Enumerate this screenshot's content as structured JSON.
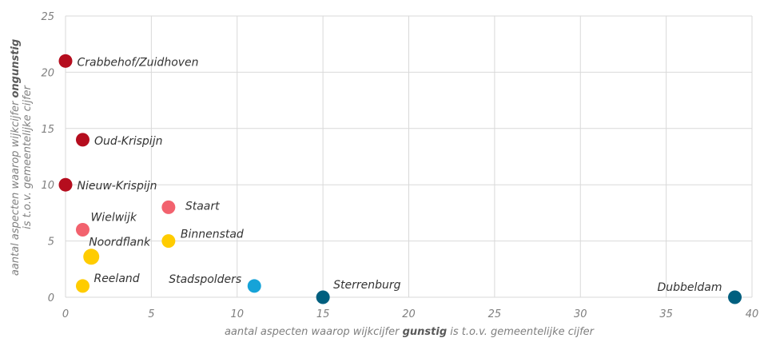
{
  "chart_data": {
    "type": "scatter",
    "xlim": [
      0,
      40
    ],
    "ylim": [
      0,
      25
    ],
    "x_ticks": [
      0,
      5,
      10,
      15,
      20,
      25,
      30,
      35,
      40
    ],
    "y_ticks": [
      0,
      5,
      10,
      15,
      20,
      25
    ],
    "grid": true,
    "xlabel": {
      "before": "aantal aspecten waarop wijkcijfer ",
      "emphasis": "gunstig",
      "after": " is t.o.v. gemeentelijke cijfer"
    },
    "ylabel": {
      "line1_before": "aantal aspecten waarop wijkcijfer ",
      "line1_emphasis": "ongunstig",
      "line2": "is t.o.v. gemeentelijke cijfer"
    },
    "points": [
      {
        "label": "Crabbehof/Zuidhoven",
        "x": 0,
        "y": 21,
        "color": "#b50d1e",
        "label_pos": "right"
      },
      {
        "label": "Oud-Krispijn",
        "x": 1,
        "y": 14,
        "color": "#b50d1e",
        "label_pos": "right"
      },
      {
        "label": "Nieuw-Krispijn",
        "x": 0,
        "y": 10,
        "color": "#b50d1e",
        "label_pos": "right"
      },
      {
        "label": "Staart",
        "x": 6,
        "y": 8,
        "color": "#f2626e",
        "label_pos": "right"
      },
      {
        "label": "Wielwijk",
        "x": 1,
        "y": 6,
        "color": "#f2626e",
        "label_pos": "upper-right"
      },
      {
        "label": "Binnenstad",
        "x": 6,
        "y": 5,
        "color": "#ffcc00",
        "label_pos": "upper-right"
      },
      {
        "label": "Noordflank",
        "x": 1.5,
        "y": 3.6,
        "color": "#ffcc00",
        "label_pos": "upper-right",
        "size": "large"
      },
      {
        "label": "Reeland",
        "x": 1,
        "y": 1,
        "color": "#ffcc00",
        "label_pos": "upper-right"
      },
      {
        "label": "Stadspolders",
        "x": 11,
        "y": 1,
        "color": "#16a3d8",
        "label_pos": "upper-left"
      },
      {
        "label": "Sterrenburg",
        "x": 15,
        "y": 0,
        "color": "#005f7f",
        "label_pos": "upper-right"
      },
      {
        "label": "Dubbeldam",
        "x": 39,
        "y": 0,
        "color": "#005f7f",
        "label_pos": "upper-left"
      }
    ]
  }
}
